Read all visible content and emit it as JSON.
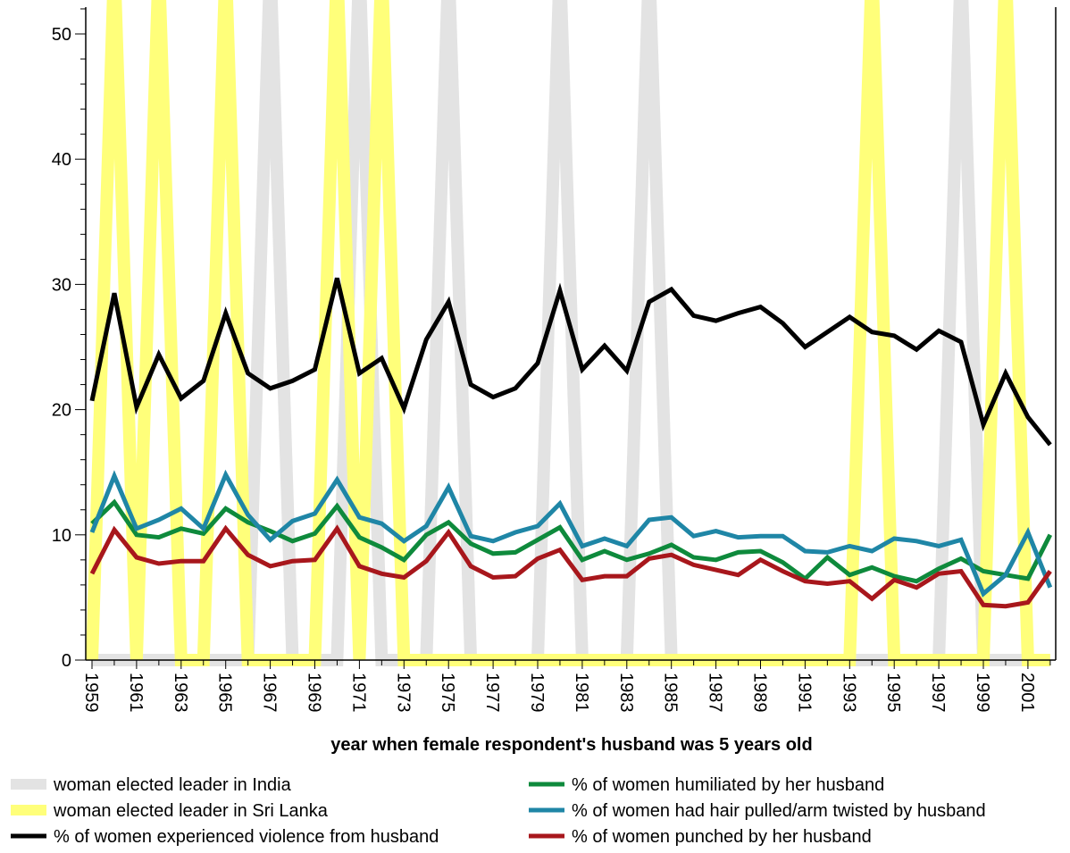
{
  "chart_data": {
    "type": "line",
    "title": "",
    "xlabel": "year when female respondent's husband was 5 years old",
    "ylabel": "",
    "xlim": [
      1959,
      2002
    ],
    "ylim": [
      0,
      52
    ],
    "x_tick_labels": [
      "1959",
      "1961",
      "1963",
      "1965",
      "1967",
      "1969",
      "1971",
      "1973",
      "1975",
      "1977",
      "1979",
      "1981",
      "1983",
      "1985",
      "1987",
      "1989",
      "1991",
      "1993",
      "1995",
      "1997",
      "1999",
      "2001"
    ],
    "y_tick_labels": [
      "0",
      "10",
      "20",
      "30",
      "40",
      "50"
    ],
    "legend_position": "bottom",
    "x": [
      1959,
      1960,
      1961,
      1962,
      1963,
      1964,
      1965,
      1966,
      1967,
      1968,
      1969,
      1970,
      1971,
      1972,
      1973,
      1974,
      1975,
      1976,
      1977,
      1978,
      1979,
      1980,
      1981,
      1982,
      1983,
      1984,
      1985,
      1986,
      1987,
      1988,
      1989,
      1990,
      1991,
      1992,
      1993,
      1994,
      1995,
      1996,
      1997,
      1998,
      1999,
      2000,
      2001,
      2002
    ],
    "series": [
      {
        "name": "woman elected leader in India",
        "color": "#e3e3e3",
        "width": 14,
        "values": [
          0,
          0,
          0,
          0,
          0,
          0,
          0,
          0,
          100,
          0,
          0,
          0,
          100,
          0,
          0,
          0,
          100,
          0,
          0,
          0,
          0,
          100,
          0,
          0,
          0,
          100,
          0,
          0,
          0,
          0,
          0,
          0,
          0,
          0,
          0,
          0,
          0,
          0,
          0,
          100,
          0,
          0,
          0,
          0
        ]
      },
      {
        "name": "woman elected leader in Sri Lanka",
        "color": "#ffff7a",
        "width": 14,
        "values": [
          0,
          100,
          0,
          100,
          0,
          0,
          100,
          0,
          0,
          0,
          0,
          100,
          0,
          100,
          0,
          0,
          0,
          0,
          0,
          0,
          0,
          0,
          0,
          0,
          0,
          0,
          0,
          0,
          0,
          0,
          0,
          0,
          0,
          0,
          0,
          100,
          0,
          0,
          0,
          0,
          0,
          100,
          0,
          0
        ]
      },
      {
        "name": "% of women experienced violence from husband",
        "color": "#000000",
        "width": 5,
        "values": [
          20.7,
          29.3,
          20.2,
          24.4,
          20.9,
          22.3,
          27.7,
          22.9,
          21.7,
          22.3,
          23.2,
          30.5,
          22.9,
          24.1,
          20.1,
          25.6,
          28.6,
          22.0,
          21.0,
          21.7,
          23.7,
          29.5,
          23.2,
          25.1,
          23.1,
          28.6,
          29.6,
          27.5,
          27.1,
          27.7,
          28.2,
          26.9,
          25.0,
          26.2,
          27.4,
          26.2,
          25.9,
          24.8,
          26.3,
          25.4,
          18.8,
          22.9,
          19.4,
          17.2
        ]
      },
      {
        "name": "% of women humiliated by her husband",
        "color": "#0e8a3c",
        "width": 5,
        "values": [
          10.9,
          12.6,
          10.0,
          9.8,
          10.5,
          10.1,
          12.1,
          11.0,
          10.3,
          9.5,
          10.1,
          12.3,
          9.8,
          9.0,
          8.0,
          10.0,
          11.0,
          9.3,
          8.5,
          8.6,
          9.6,
          10.6,
          8.0,
          8.7,
          8.0,
          8.5,
          9.2,
          8.2,
          8.0,
          8.6,
          8.7,
          7.8,
          6.5,
          8.2,
          6.8,
          7.4,
          6.7,
          6.3,
          7.3,
          8.1,
          7.1,
          6.8,
          6.5,
          10.0
        ]
      },
      {
        "name": "% of women had hair pulled/arm twisted by husband",
        "color": "#1f86a6",
        "width": 5,
        "values": [
          10.2,
          14.7,
          10.5,
          11.2,
          12.1,
          10.5,
          14.8,
          11.6,
          9.6,
          11.1,
          11.7,
          14.4,
          11.4,
          10.9,
          9.5,
          10.7,
          13.8,
          9.9,
          9.5,
          10.2,
          10.7,
          12.5,
          9.1,
          9.7,
          9.1,
          11.2,
          11.4,
          9.9,
          10.3,
          9.8,
          9.9,
          9.9,
          8.7,
          8.6,
          9.1,
          8.7,
          9.7,
          9.5,
          9.1,
          9.6,
          5.3,
          6.8,
          10.2,
          5.8
        ]
      },
      {
        "name": "% of women punched by her husband",
        "color": "#a8171c",
        "width": 5,
        "values": [
          6.9,
          10.4,
          8.2,
          7.7,
          7.9,
          7.9,
          10.5,
          8.4,
          7.5,
          7.9,
          8.0,
          10.5,
          7.5,
          6.9,
          6.6,
          7.9,
          10.2,
          7.5,
          6.6,
          6.7,
          8.1,
          8.8,
          6.4,
          6.7,
          6.7,
          8.1,
          8.4,
          7.6,
          7.2,
          6.8,
          8.0,
          7.1,
          6.3,
          6.1,
          6.3,
          4.9,
          6.4,
          5.8,
          6.9,
          7.1,
          4.4,
          4.3,
          4.6,
          7.1
        ]
      }
    ]
  }
}
